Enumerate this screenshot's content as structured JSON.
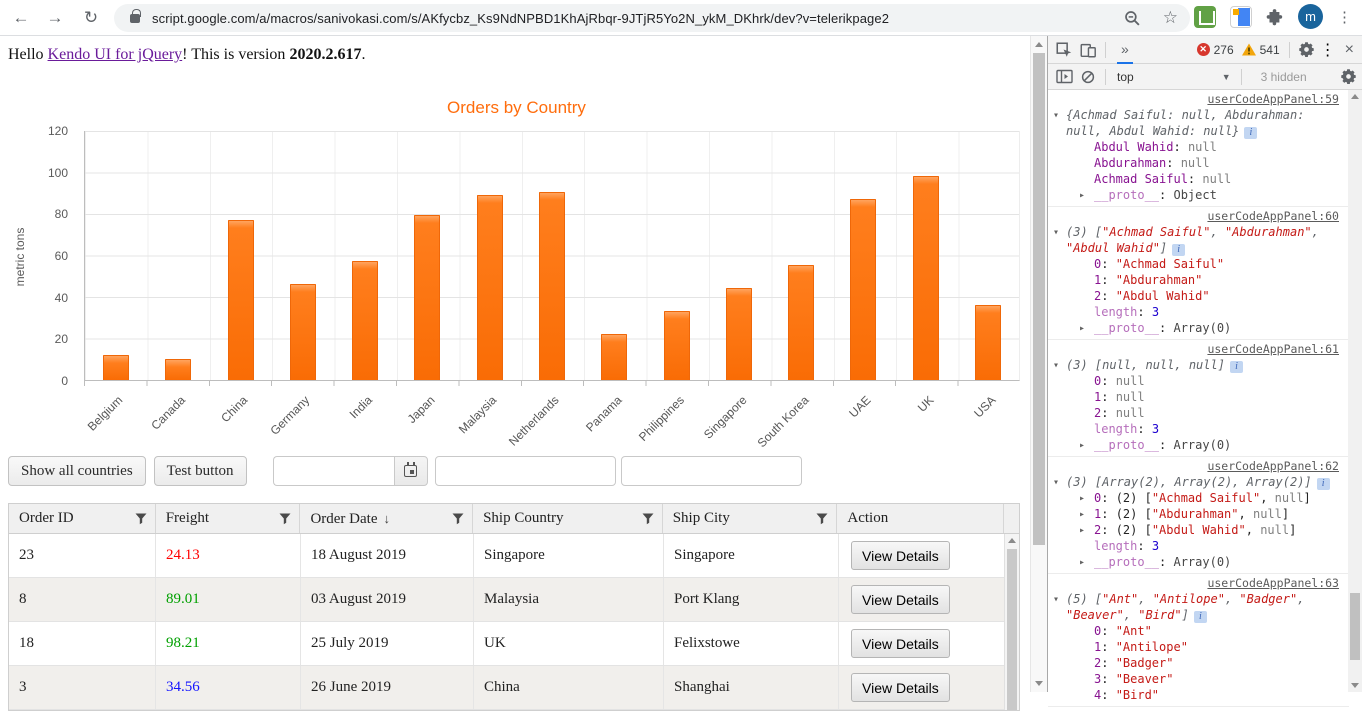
{
  "browser": {
    "url": "script.google.com/a/macros/sanivokasi.com/s/AKfycbz_Ks9NdNPBD1KhAjRbqr-9JTjR5Yo2N_ykM_DKhrk/dev?v=telerikpage2",
    "avatar_initial": "m"
  },
  "icons": {
    "back": "←",
    "forward": "→",
    "refresh": "↻",
    "star": "☆",
    "menu_vertical": "⋮",
    "more_tabs": "»",
    "close": "×",
    "dropdown_caret": "▼",
    "collapse_down": "▾",
    "collapse_right": "▸",
    "sort_desc": "↓"
  },
  "page": {
    "greeting": {
      "prefix": "Hello ",
      "link": "Kendo UI for jQuery",
      "middle": "! This is version ",
      "version": "2020.2.617",
      "suffix": "."
    },
    "controls": {
      "show_all_label": "Show all countries",
      "test_label": "Test button",
      "datepicker_value": "",
      "input2_value": "",
      "input3_value": ""
    },
    "grid": {
      "columns": [
        {
          "label": "Order ID",
          "filter": true
        },
        {
          "label": "Freight",
          "filter": true
        },
        {
          "label": "Order Date",
          "filter": true,
          "sort": "↓"
        },
        {
          "label": "Ship Country",
          "filter": true
        },
        {
          "label": "Ship City",
          "filter": true
        },
        {
          "label": "Action",
          "filter": false
        }
      ],
      "action_label": "View Details",
      "rows": [
        {
          "order_id": "23",
          "freight": "24.13",
          "freight_color": "#ff0000",
          "order_date": "18 August 2019",
          "ship_country": "Singapore",
          "ship_city": "Singapore"
        },
        {
          "order_id": "8",
          "freight": "89.01",
          "freight_color": "#00a000",
          "order_date": "03 August 2019",
          "ship_country": "Malaysia",
          "ship_city": "Port Klang"
        },
        {
          "order_id": "18",
          "freight": "98.21",
          "freight_color": "#00a000",
          "order_date": "25 July 2019",
          "ship_country": "UK",
          "ship_city": "Felixstowe"
        },
        {
          "order_id": "3",
          "freight": "34.56",
          "freight_color": "#1414ff",
          "order_date": "26 June 2019",
          "ship_country": "China",
          "ship_city": "Shanghai"
        }
      ]
    }
  },
  "chart_data": {
    "type": "bar",
    "title": "Orders by Country",
    "title_color": "#ff6d0d",
    "bar_color": "#ff6e0c",
    "xlabel": "",
    "ylabel": "metric tons",
    "ylim": [
      0,
      120
    ],
    "yticks": [
      0,
      20,
      40,
      60,
      80,
      100,
      120
    ],
    "grid": "on",
    "legend": "none",
    "categories": [
      "Belgium",
      "Canada",
      "China",
      "Germany",
      "India",
      "Japan",
      "Malaysia",
      "Netherlands",
      "Panama",
      "Philippines",
      "Singapore",
      "South Korea",
      "UAE",
      "UK",
      "USA"
    ],
    "values": [
      12,
      10,
      77,
      46,
      57,
      79,
      89,
      90,
      22,
      33,
      44,
      55,
      87,
      98,
      36
    ]
  },
  "devtools": {
    "toolbar": {
      "more_tabs": "»",
      "error_count": "276",
      "warning_count": "541",
      "close": "×",
      "menu": "⋮"
    },
    "console_bar": {
      "context": "top",
      "hidden": "3 hidden"
    },
    "console": {
      "info_badge": "i",
      "entries": [
        {
          "source": "userCodeAppPanel:59",
          "lines": [
            {
              "exp": "down",
              "info": true,
              "parts": [
                [
                  "g",
                  "{Achmad Saiful: null, Abdurahman: null, Abdul Wahid: null}"
                ]
              ]
            },
            {
              "indent": 1,
              "parts": [
                [
                  "p",
                  "Abdul Wahid"
                ],
                [
                  "d",
                  ": "
                ],
                [
                  "n",
                  "null"
                ]
              ]
            },
            {
              "indent": 1,
              "parts": [
                [
                  "p",
                  "Abdurahman"
                ],
                [
                  "d",
                  ": "
                ],
                [
                  "n",
                  "null"
                ]
              ]
            },
            {
              "indent": 1,
              "parts": [
                [
                  "p",
                  "Achmad Saiful"
                ],
                [
                  "d",
                  ": "
                ],
                [
                  "n",
                  "null"
                ]
              ]
            },
            {
              "indent": 1,
              "exp": "right",
              "parts": [
                [
                  "pd",
                  "__proto__"
                ],
                [
                  "d",
                  ": "
                ],
                [
                  "ov",
                  "Object"
                ]
              ]
            }
          ]
        },
        {
          "source": "userCodeAppPanel:60",
          "lines": [
            {
              "exp": "down",
              "info": true,
              "parts": [
                [
                  "g",
                  "(3) ["
                ],
                [
                  "s",
                  "\"Achmad Saiful\""
                ],
                [
                  "g",
                  ", "
                ],
                [
                  "s",
                  "\"Abdurahman\""
                ],
                [
                  "g",
                  ", "
                ],
                [
                  "s",
                  "\"Abdul Wahid\""
                ],
                [
                  "g",
                  "]"
                ]
              ]
            },
            {
              "indent": 1,
              "parts": [
                [
                  "p",
                  "0"
                ],
                [
                  "d",
                  ": "
                ],
                [
                  "sr",
                  "\"Achmad Saiful\""
                ]
              ]
            },
            {
              "indent": 1,
              "parts": [
                [
                  "p",
                  "1"
                ],
                [
                  "d",
                  ": "
                ],
                [
                  "sr",
                  "\"Abdurahman\""
                ]
              ]
            },
            {
              "indent": 1,
              "parts": [
                [
                  "p",
                  "2"
                ],
                [
                  "d",
                  ": "
                ],
                [
                  "sr",
                  "\"Abdul Wahid\""
                ]
              ]
            },
            {
              "indent": 1,
              "parts": [
                [
                  "pd",
                  "length"
                ],
                [
                  "d",
                  ": "
                ],
                [
                  "num",
                  "3"
                ]
              ]
            },
            {
              "indent": 1,
              "exp": "right",
              "parts": [
                [
                  "pd",
                  "__proto__"
                ],
                [
                  "d",
                  ": "
                ],
                [
                  "ov",
                  "Array(0)"
                ]
              ]
            }
          ]
        },
        {
          "source": "userCodeAppPanel:61",
          "lines": [
            {
              "exp": "down",
              "info": true,
              "parts": [
                [
                  "g",
                  "(3) [null, null, null]"
                ]
              ]
            },
            {
              "indent": 1,
              "parts": [
                [
                  "p",
                  "0"
                ],
                [
                  "d",
                  ": "
                ],
                [
                  "n",
                  "null"
                ]
              ]
            },
            {
              "indent": 1,
              "parts": [
                [
                  "p",
                  "1"
                ],
                [
                  "d",
                  ": "
                ],
                [
                  "n",
                  "null"
                ]
              ]
            },
            {
              "indent": 1,
              "parts": [
                [
                  "p",
                  "2"
                ],
                [
                  "d",
                  ": "
                ],
                [
                  "n",
                  "null"
                ]
              ]
            },
            {
              "indent": 1,
              "parts": [
                [
                  "pd",
                  "length"
                ],
                [
                  "d",
                  ": "
                ],
                [
                  "num",
                  "3"
                ]
              ]
            },
            {
              "indent": 1,
              "exp": "right",
              "parts": [
                [
                  "pd",
                  "__proto__"
                ],
                [
                  "d",
                  ": "
                ],
                [
                  "ov",
                  "Array(0)"
                ]
              ]
            }
          ]
        },
        {
          "source": "userCodeAppPanel:62",
          "lines": [
            {
              "exp": "down",
              "info": true,
              "parts": [
                [
                  "g",
                  "(3) [Array(2), Array(2), Array(2)]"
                ]
              ]
            },
            {
              "indent": 1,
              "exp": "right",
              "parts": [
                [
                  "p",
                  "0"
                ],
                [
                  "d",
                  ": "
                ],
                [
                  "d",
                  "(2) ["
                ],
                [
                  "sr",
                  "\"Achmad Saiful\""
                ],
                [
                  "d",
                  ", "
                ],
                [
                  "n",
                  "null"
                ],
                [
                  "d",
                  "]"
                ]
              ]
            },
            {
              "indent": 1,
              "exp": "right",
              "parts": [
                [
                  "p",
                  "1"
                ],
                [
                  "d",
                  ": "
                ],
                [
                  "d",
                  "(2) ["
                ],
                [
                  "sr",
                  "\"Abdurahman\""
                ],
                [
                  "d",
                  ", "
                ],
                [
                  "n",
                  "null"
                ],
                [
                  "d",
                  "]"
                ]
              ]
            },
            {
              "indent": 1,
              "exp": "right",
              "parts": [
                [
                  "p",
                  "2"
                ],
                [
                  "d",
                  ": "
                ],
                [
                  "d",
                  "(2) ["
                ],
                [
                  "sr",
                  "\"Abdul Wahid\""
                ],
                [
                  "d",
                  ", "
                ],
                [
                  "n",
                  "null"
                ],
                [
                  "d",
                  "]"
                ]
              ]
            },
            {
              "indent": 1,
              "parts": [
                [
                  "pd",
                  "length"
                ],
                [
                  "d",
                  ": "
                ],
                [
                  "num",
                  "3"
                ]
              ]
            },
            {
              "indent": 1,
              "exp": "right",
              "parts": [
                [
                  "pd",
                  "__proto__"
                ],
                [
                  "d",
                  ": "
                ],
                [
                  "ov",
                  "Array(0)"
                ]
              ]
            }
          ]
        },
        {
          "source": "userCodeAppPanel:63",
          "lines": [
            {
              "exp": "down",
              "info": true,
              "parts": [
                [
                  "g",
                  "(5) ["
                ],
                [
                  "s",
                  "\"Ant\""
                ],
                [
                  "g",
                  ", "
                ],
                [
                  "s",
                  "\"Antilope\""
                ],
                [
                  "g",
                  ", "
                ],
                [
                  "s",
                  "\"Badger\""
                ],
                [
                  "g",
                  ", "
                ],
                [
                  "s",
                  "\"Beaver\""
                ],
                [
                  "g",
                  ", "
                ],
                [
                  "s",
                  "\"Bird\""
                ],
                [
                  "g",
                  "]"
                ]
              ]
            },
            {
              "indent": 1,
              "parts": [
                [
                  "p",
                  "0"
                ],
                [
                  "d",
                  ": "
                ],
                [
                  "sr",
                  "\"Ant\""
                ]
              ]
            },
            {
              "indent": 1,
              "parts": [
                [
                  "p",
                  "1"
                ],
                [
                  "d",
                  ": "
                ],
                [
                  "sr",
                  "\"Antilope\""
                ]
              ]
            },
            {
              "indent": 1,
              "parts": [
                [
                  "p",
                  "2"
                ],
                [
                  "d",
                  ": "
                ],
                [
                  "sr",
                  "\"Badger\""
                ]
              ]
            },
            {
              "indent": 1,
              "parts": [
                [
                  "p",
                  "3"
                ],
                [
                  "d",
                  ": "
                ],
                [
                  "sr",
                  "\"Beaver\""
                ]
              ]
            },
            {
              "indent": 1,
              "parts": [
                [
                  "p",
                  "4"
                ],
                [
                  "d",
                  ": "
                ],
                [
                  "sr",
                  "\"Bird\""
                ]
              ]
            }
          ]
        }
      ]
    }
  }
}
